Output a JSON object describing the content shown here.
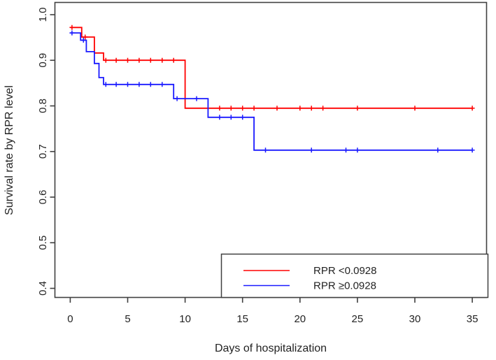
{
  "chart_data": {
    "type": "line",
    "subtype": "kaplan-meier-step-curve",
    "title": "",
    "xlabel": "Days of hospitalization",
    "ylabel": "Survival rate by RPR level",
    "x_ticks": [
      0,
      5,
      10,
      15,
      20,
      25,
      30,
      35
    ],
    "y_ticks": [
      "0.4",
      "0.5",
      "0.6",
      "0.7",
      "0.8",
      "0.9",
      "1.0"
    ],
    "xlim": [
      -1.4,
      36.3
    ],
    "ylim": [
      0.38,
      1.03
    ],
    "grid": false,
    "legend_position": "bottom-right",
    "axis_color": "#404040",
    "text_color": "#232323",
    "series": [
      {
        "name": "RPR <0.0928",
        "color": "#ff0000",
        "steps": [
          [
            0,
            0.972
          ],
          [
            1,
            0.972
          ],
          [
            1,
            0.951
          ],
          [
            2.1,
            0.951
          ],
          [
            2.1,
            0.916
          ],
          [
            2.9,
            0.916
          ],
          [
            2.9,
            0.9
          ],
          [
            10,
            0.9
          ],
          [
            10,
            0.795
          ],
          [
            35,
            0.795
          ]
        ],
        "censors": [
          [
            0.15,
            0.972
          ],
          [
            1.3,
            0.951
          ],
          [
            3.1,
            0.9
          ],
          [
            4,
            0.9
          ],
          [
            5,
            0.9
          ],
          [
            6,
            0.9
          ],
          [
            7,
            0.9
          ],
          [
            8,
            0.9
          ],
          [
            9,
            0.9
          ],
          [
            13,
            0.795
          ],
          [
            14,
            0.795
          ],
          [
            15,
            0.795
          ],
          [
            16,
            0.795
          ],
          [
            18,
            0.795
          ],
          [
            20,
            0.795
          ],
          [
            21,
            0.795
          ],
          [
            22,
            0.795
          ],
          [
            25,
            0.795
          ],
          [
            30,
            0.795
          ],
          [
            35,
            0.795
          ]
        ]
      },
      {
        "name": "RPR ≥0.0928",
        "color": "#1a1aff",
        "steps": [
          [
            0,
            0.96
          ],
          [
            0.9,
            0.96
          ],
          [
            0.9,
            0.944
          ],
          [
            1.4,
            0.944
          ],
          [
            1.4,
            0.919
          ],
          [
            2.1,
            0.919
          ],
          [
            2.1,
            0.893
          ],
          [
            2.5,
            0.893
          ],
          [
            2.5,
            0.862
          ],
          [
            2.9,
            0.862
          ],
          [
            2.9,
            0.847
          ],
          [
            9,
            0.847
          ],
          [
            9,
            0.816
          ],
          [
            12,
            0.816
          ],
          [
            12,
            0.775
          ],
          [
            16,
            0.775
          ],
          [
            16,
            0.703
          ],
          [
            35,
            0.703
          ]
        ],
        "censors": [
          [
            0.15,
            0.96
          ],
          [
            1.15,
            0.944
          ],
          [
            3.1,
            0.847
          ],
          [
            4,
            0.847
          ],
          [
            5,
            0.847
          ],
          [
            6,
            0.847
          ],
          [
            7,
            0.847
          ],
          [
            8,
            0.847
          ],
          [
            9.3,
            0.816
          ],
          [
            11,
            0.816
          ],
          [
            13,
            0.775
          ],
          [
            14,
            0.775
          ],
          [
            15,
            0.775
          ],
          [
            17,
            0.703
          ],
          [
            21,
            0.703
          ],
          [
            24,
            0.703
          ],
          [
            25,
            0.703
          ],
          [
            32,
            0.703
          ],
          [
            35,
            0.703
          ]
        ]
      }
    ]
  }
}
